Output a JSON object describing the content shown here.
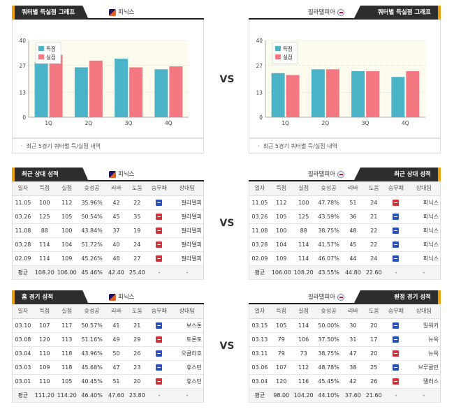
{
  "vs_label": "VS",
  "sections": {
    "quarter_title": "쿼터별 득실점 그래프",
    "recent_title": "최근 상대 성적",
    "home_title": "홈 경기 성적",
    "away_title": "원정 경기 성적",
    "chart_note": "최근 5경기 쿼터별 득/실점 내역"
  },
  "teams": {
    "left": "피닉스",
    "right": "필라델피아"
  },
  "colors": {
    "scored": "#4bb3c8",
    "allowed": "#f47882",
    "tab_bg": "#2d2d2d",
    "tab_accent": "#f0a000",
    "chart_bg": "#fdfbee"
  },
  "columns": [
    "일자",
    "득점",
    "실점",
    "슛성공",
    "리바",
    "도움",
    "승무패",
    "상대팀"
  ],
  "chart_data": [
    {
      "type": "bar",
      "team": "피닉스",
      "categories": [
        "1Q",
        "2Q",
        "3Q",
        "4Q"
      ],
      "series": [
        {
          "name": "득점",
          "values": [
            28.5,
            26,
            30.5,
            25
          ]
        },
        {
          "name": "실점",
          "values": [
            32.5,
            29.5,
            26,
            26.5
          ]
        }
      ],
      "y_ticks": [
        "0",
        "13",
        "27",
        "40"
      ],
      "ylim": [
        0,
        40
      ],
      "legend": "top-left"
    },
    {
      "type": "bar",
      "team": "필라델피아",
      "categories": [
        "1Q",
        "2Q",
        "3Q",
        "4Q"
      ],
      "series": [
        {
          "name": "득점",
          "values": [
            23,
            25,
            24,
            21
          ]
        },
        {
          "name": "실점",
          "values": [
            22,
            25,
            24,
            24
          ]
        }
      ],
      "y_ticks": [
        "0",
        "13",
        "27",
        "40"
      ],
      "ylim": [
        0,
        40
      ],
      "legend": "top-left"
    }
  ],
  "tables": {
    "recent_left": {
      "rows": [
        [
          "11.05",
          "100",
          "112",
          "35.96%",
          "42",
          "22",
          "win",
          "필라델피"
        ],
        [
          "03.26",
          "125",
          "105",
          "50.54%",
          "45",
          "35",
          "loss",
          "필라델피"
        ],
        [
          "11.08",
          "88",
          "100",
          "43.84%",
          "37",
          "19",
          "loss",
          "필라델피"
        ],
        [
          "03.28",
          "114",
          "104",
          "51.72%",
          "40",
          "24",
          "loss",
          "필라델피"
        ],
        [
          "02.09",
          "114",
          "109",
          "45.26%",
          "48",
          "27",
          "loss",
          "필라델피"
        ]
      ],
      "avg": [
        "평균",
        "108.20",
        "106.00",
        "45.46%",
        "42.40",
        "25.40",
        "-",
        "-"
      ]
    },
    "recent_right": {
      "rows": [
        [
          "11.05",
          "112",
          "100",
          "47.78%",
          "51",
          "24",
          "loss",
          "피닉스"
        ],
        [
          "03.26",
          "105",
          "125",
          "43.59%",
          "36",
          "21",
          "win",
          "피닉스"
        ],
        [
          "11.08",
          "100",
          "88",
          "38.75%",
          "48",
          "22",
          "win",
          "피닉스"
        ],
        [
          "03.28",
          "104",
          "114",
          "41.57%",
          "45",
          "22",
          "win",
          "피닉스"
        ],
        [
          "02.09",
          "109",
          "114",
          "46.07%",
          "44",
          "24",
          "win",
          "피닉스"
        ]
      ],
      "avg": [
        "평균",
        "106.00",
        "108.20",
        "43.55%",
        "44.80",
        "22.60",
        "-",
        "-"
      ]
    },
    "home_left": {
      "rows": [
        [
          "03.10",
          "107",
          "117",
          "50.57%",
          "41",
          "21",
          "win",
          "보스톤"
        ],
        [
          "03.08",
          "120",
          "113",
          "51.16%",
          "49",
          "29",
          "loss",
          "토론토"
        ],
        [
          "03.04",
          "110",
          "118",
          "43.96%",
          "50",
          "26",
          "win",
          "오클라호"
        ],
        [
          "03.03",
          "109",
          "118",
          "45.68%",
          "47",
          "23",
          "win",
          "휴스턴"
        ],
        [
          "03.01",
          "110",
          "105",
          "40.45%",
          "51",
          "20",
          "loss",
          "휴스턴"
        ]
      ],
      "avg": [
        "평균",
        "111.20",
        "114.20",
        "46.40%",
        "47.60",
        "23.80",
        "-",
        "-"
      ]
    },
    "away_right": {
      "rows": [
        [
          "03.15",
          "105",
          "114",
          "50.00%",
          "30",
          "20",
          "win",
          "밀워키"
        ],
        [
          "03.13",
          "79",
          "106",
          "37.50%",
          "31",
          "17",
          "win",
          "뉴욕"
        ],
        [
          "03.11",
          "79",
          "73",
          "38.75%",
          "47",
          "20",
          "loss",
          "뉴욕"
        ],
        [
          "03.06",
          "107",
          "112",
          "48.78%",
          "38",
          "25",
          "win",
          "브루클린"
        ],
        [
          "03.04",
          "120",
          "116",
          "45.45%",
          "42",
          "26",
          "loss",
          "댈러스"
        ]
      ],
      "avg": [
        "평균",
        "98.00",
        "104.20",
        "44.10%",
        "37.60",
        "21.60",
        "-",
        "-"
      ]
    }
  }
}
